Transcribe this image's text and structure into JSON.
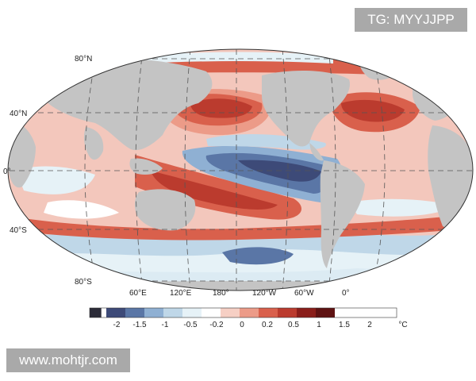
{
  "map": {
    "lat_labels": [
      "80°N",
      "40°N",
      "0°",
      "40°S",
      "80°S"
    ],
    "lon_labels": [
      "60°E",
      "120°E",
      "180°",
      "120°W",
      "60°W",
      "0°"
    ]
  },
  "legend": {
    "ticks": [
      "-2",
      "-1.5",
      "-1",
      "-0.5",
      "-0.2",
      "0",
      "0.2",
      "0.5",
      "1",
      "1.5",
      "2"
    ],
    "unit": "°C",
    "colors": [
      "#2b2b38",
      "#3d4a78",
      "#5a76a6",
      "#8fb0d3",
      "#bfd7e8",
      "#e6f2f7",
      "#ffffff",
      "#f6cfc4",
      "#ec9b88",
      "#d9604c",
      "#bb3b2e",
      "#8a1e1a",
      "#5e1212"
    ]
  },
  "overlays": {
    "tg": "TG: MYYJJPP",
    "site": "www.mohtjr.com"
  },
  "colors": {
    "land": "#c4c4c4",
    "ocean_base": "#f3c7bc",
    "grid": "#555555"
  }
}
